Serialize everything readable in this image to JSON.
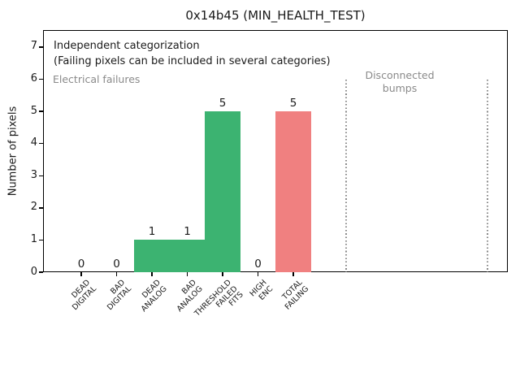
{
  "window": {
    "title": "0x14b45 (MIN_HEALTH_TEST)"
  },
  "chart_data": {
    "type": "bar",
    "title": "0x14b45 (MIN_HEALTH_TEST)",
    "xlabel": "",
    "ylabel": "Number of pixels",
    "categories": [
      [
        "DEAD",
        "DIGITAL"
      ],
      [
        "BAD",
        "DIGITAL"
      ],
      [
        "DEAD",
        "ANALOG"
      ],
      [
        "BAD",
        "ANALOG"
      ],
      [
        "THRESHOLD",
        "FAILED",
        "FITS"
      ],
      [
        "HIGH",
        "ENC"
      ],
      [
        "TOTAL",
        "FAILING"
      ]
    ],
    "values": [
      0,
      0,
      1,
      1,
      5,
      0,
      5
    ],
    "value_labels": [
      "0",
      "0",
      "1",
      "1",
      "5",
      "0",
      "5"
    ],
    "bar_colors": [
      "#3cb371",
      "#3cb371",
      "#3cb371",
      "#3cb371",
      "#3cb371",
      "#3cb371",
      "#f08080"
    ],
    "yticks": [
      0,
      1,
      2,
      3,
      4,
      5,
      6,
      7
    ],
    "ylim": [
      0,
      7.53
    ],
    "grid": false,
    "legend": "none",
    "annotations": [
      {
        "text": "Independent categorization",
        "color": "#1a1a1a"
      },
      {
        "text": "(Failing pixels can be included in several categories)",
        "color": "#1a1a1a"
      },
      {
        "text": "Electrical failures",
        "color": "#8a8a8a"
      },
      {
        "text": "Disconnected\nbumps",
        "color": "#8a8a8a"
      }
    ],
    "separators": [
      {
        "x": 7.5,
        "y_top": 6.0,
        "style": "dotted",
        "color": "#8a8a8a"
      },
      {
        "x": 11.5,
        "y_top": 6.0,
        "style": "dotted",
        "color": "#8a8a8a"
      }
    ],
    "colors": {
      "pass_green": "#3cb371",
      "fail_red": "#f08080",
      "note_gray": "#8a8a8a"
    }
  }
}
